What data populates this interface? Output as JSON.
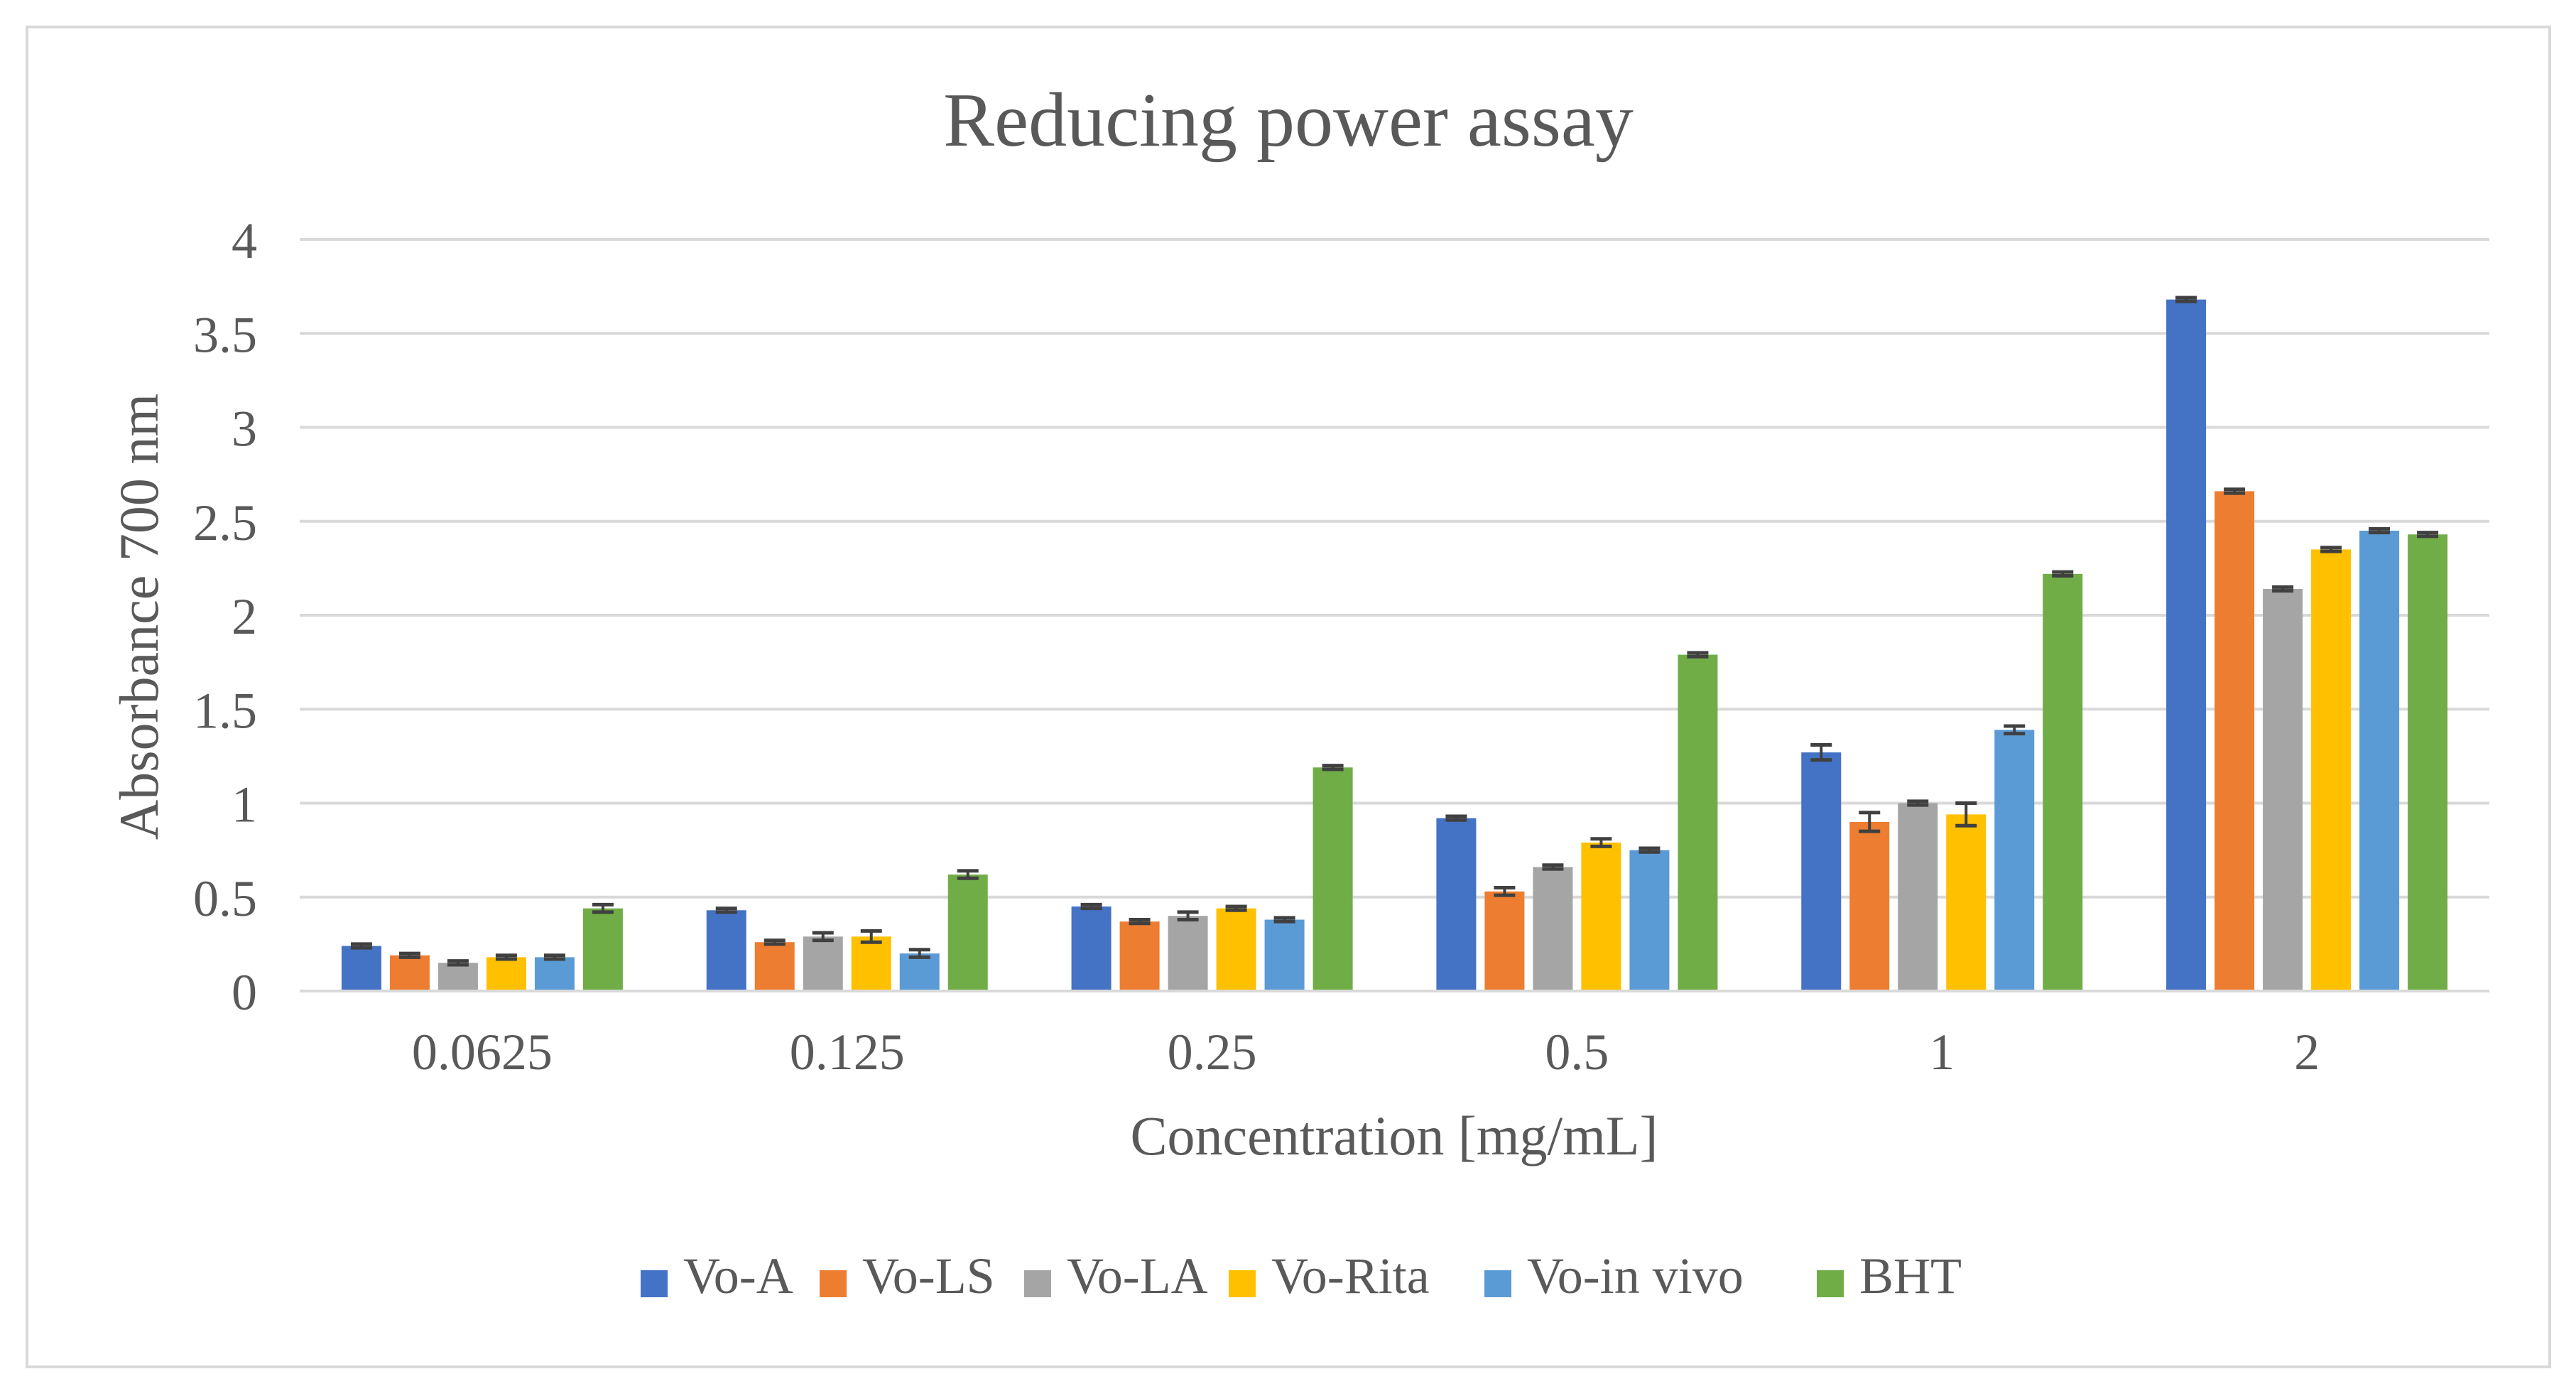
{
  "chart_data": {
    "type": "bar",
    "title": "Reducing power assay",
    "xlabel": "Concentration [mg/mL]",
    "ylabel": "Absorbance 700 nm",
    "categories": [
      "0.0625",
      "0.125",
      "0.25",
      "0.5",
      "1",
      "2"
    ],
    "ylim": [
      0,
      4
    ],
    "yticks": [
      "0",
      "0.5",
      "1",
      "1.5",
      "2",
      "2.5",
      "3",
      "3.5",
      "4"
    ],
    "grid": true,
    "legend": "bottom",
    "series": [
      {
        "name": "Vo-A",
        "color": "#4472C4",
        "values": [
          0.24,
          0.43,
          0.45,
          0.92,
          1.27,
          3.68
        ],
        "errors": [
          0.01,
          0.01,
          0.01,
          0.01,
          0.04,
          0.01
        ]
      },
      {
        "name": "Vo-LS",
        "color": "#ED7D31",
        "values": [
          0.19,
          0.26,
          0.37,
          0.53,
          0.9,
          2.66
        ],
        "errors": [
          0.01,
          0.01,
          0.01,
          0.02,
          0.05,
          0.01
        ]
      },
      {
        "name": "Vo-LA",
        "color": "#A5A5A5",
        "values": [
          0.15,
          0.29,
          0.4,
          0.66,
          1.0,
          2.14
        ],
        "errors": [
          0.01,
          0.02,
          0.02,
          0.01,
          0.01,
          0.01
        ]
      },
      {
        "name": "Vo-Rita",
        "color": "#FFC000",
        "values": [
          0.18,
          0.29,
          0.44,
          0.79,
          0.94,
          2.35
        ],
        "errors": [
          0.01,
          0.03,
          0.01,
          0.02,
          0.06,
          0.01
        ]
      },
      {
        "name": "Vo-in vivo",
        "color": "#5B9BD5",
        "values": [
          0.18,
          0.2,
          0.38,
          0.75,
          1.39,
          2.45
        ],
        "errors": [
          0.01,
          0.02,
          0.01,
          0.01,
          0.02,
          0.01
        ]
      },
      {
        "name": "BHT",
        "color": "#70AD47",
        "values": [
          0.44,
          0.62,
          1.19,
          1.79,
          2.22,
          2.43
        ],
        "errors": [
          0.02,
          0.02,
          0.01,
          0.01,
          0.01,
          0.01
        ]
      }
    ]
  }
}
